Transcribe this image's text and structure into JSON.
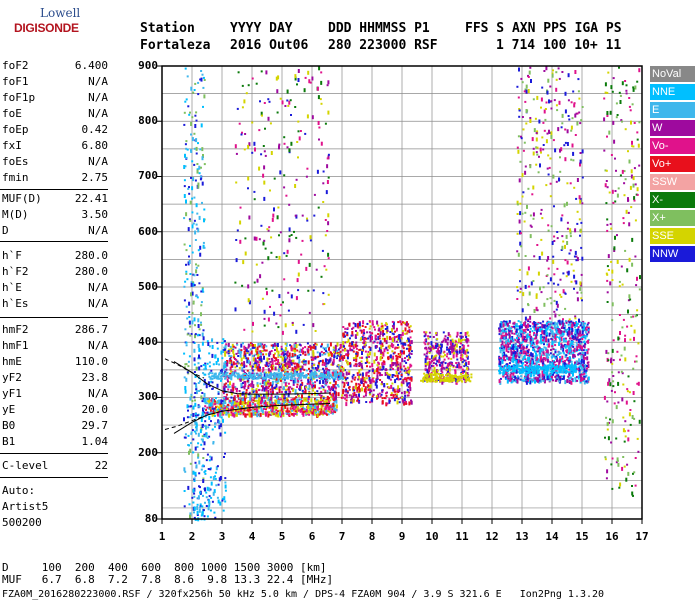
{
  "logo": {
    "top": "Lowell",
    "bottom": "DIGISONDE"
  },
  "header": {
    "labels": [
      "Station",
      "YYYY DAY",
      "DDD HHMMSS P1",
      "FFS S AXN PPS IGA PS"
    ],
    "values": [
      "Fortaleza",
      "2016 Out06",
      "280 223000 RSF",
      "1 714 100 10+ 11"
    ]
  },
  "params_group1": [
    {
      "name": "foF2",
      "value": "6.400"
    },
    {
      "name": "foF1",
      "value": "N/A"
    },
    {
      "name": "foF1p",
      "value": "N/A"
    },
    {
      "name": "foE",
      "value": "N/A"
    },
    {
      "name": "foEp",
      "value": "0.42"
    },
    {
      "name": "fxI",
      "value": "6.80"
    },
    {
      "name": "foEs",
      "value": "N/A"
    },
    {
      "name": "fmin",
      "value": "2.75"
    }
  ],
  "params_group2": [
    {
      "name": "MUF(D)",
      "value": "22.41"
    },
    {
      "name": "M(D)",
      "value": "3.50"
    },
    {
      "name": "D",
      "value": "N/A"
    }
  ],
  "params_group3": [
    {
      "name": "h`F",
      "value": "280.0"
    },
    {
      "name": "h`F2",
      "value": "280.0"
    },
    {
      "name": "h`E",
      "value": "N/A"
    },
    {
      "name": "h`Es",
      "value": "N/A"
    }
  ],
  "params_group4": [
    {
      "name": "hmF2",
      "value": "286.7"
    },
    {
      "name": "hmF1",
      "value": "N/A"
    },
    {
      "name": "hmE",
      "value": "110.0"
    },
    {
      "name": "yF2",
      "value": "23.8"
    },
    {
      "name": "yF1",
      "value": "N/A"
    },
    {
      "name": "yE",
      "value": "20.0"
    },
    {
      "name": "B0",
      "value": "29.7"
    },
    {
      "name": "B1",
      "value": "1.04"
    }
  ],
  "clevel": {
    "name": "C-level",
    "value": "22"
  },
  "auto": {
    "line1": "Auto:",
    "line2": "Artist5",
    "line3": "500200"
  },
  "legend": [
    {
      "label": "NoVal",
      "color": "#888888"
    },
    {
      "label": "NNE",
      "color": "#00bfff"
    },
    {
      "label": "E",
      "color": "#3fb7ec"
    },
    {
      "label": "W",
      "color": "#9e0a9e"
    },
    {
      "label": "Vo-",
      "color": "#e0128b"
    },
    {
      "label": "Vo+",
      "color": "#e8101c"
    },
    {
      "label": "SSW",
      "color": "#f3a3a3"
    },
    {
      "label": "X-",
      "color": "#0b7a0b"
    },
    {
      "label": "X+",
      "color": "#7fbf5f"
    },
    {
      "label": "SSE",
      "color": "#d4d400"
    },
    {
      "label": "NNW",
      "color": "#1a1ad9"
    }
  ],
  "bottom": {
    "line1": "D     100  200  400  600  800 1000 1500 3000 [km]",
    "line2": "MUF   6.7  6.8  7.2  7.8  8.6  9.8 13.3 22.4 [MHz]",
    "line3": "FZA0M_2016280223000.RSF / 320fx256h 50 kHz 5.0 km / DPS-4 FZA0M 904 / 3.9 S 321.6 E   Ion2Png 1.3.20"
  },
  "chart_data": {
    "type": "scatter",
    "xlim": [
      1,
      17
    ],
    "ylim": [
      80,
      900
    ],
    "xticks": [
      "1",
      "2",
      "3",
      "4",
      "5",
      "6",
      "7",
      "8",
      "9",
      "10",
      "11",
      "12",
      "13",
      "14",
      "15",
      "16",
      "17"
    ],
    "yticks": [
      "80",
      "200",
      "300",
      "400",
      "500",
      "600",
      "700",
      "800",
      "900"
    ],
    "grid": true,
    "ytick_values": [
      80,
      200,
      300,
      400,
      500,
      600,
      700,
      800,
      900
    ],
    "ygrid_values": [
      100,
      150,
      200,
      250,
      300,
      350,
      400,
      450,
      500,
      550,
      600,
      650,
      700,
      750,
      800,
      850,
      900
    ],
    "clusters": [
      {
        "x": [
          2.4,
          6.8
        ],
        "y": [
          270,
          300
        ],
        "colors": [
          "#e8101c",
          "#d4d400",
          "#e0128b",
          "#3fb7ec"
        ],
        "n": 700
      },
      {
        "x": [
          3.0,
          7.0
        ],
        "y": [
          300,
          400
        ],
        "colors": [
          "#9e0a9e",
          "#e0128b",
          "#1a1ad9",
          "#3fb7ec",
          "#d4d400",
          "#e8101c"
        ],
        "n": 1000
      },
      {
        "x": [
          7.0,
          9.3
        ],
        "y": [
          290,
          440
        ],
        "colors": [
          "#e8101c",
          "#9e0a9e",
          "#d4d400",
          "#e0128b",
          "#1a1ad9"
        ],
        "n": 700
      },
      {
        "x": [
          9.7,
          11.2
        ],
        "y": [
          330,
          420
        ],
        "colors": [
          "#9e0a9e",
          "#e0128b",
          "#d4d400",
          "#1a1ad9"
        ],
        "n": 350
      },
      {
        "x": [
          12.2,
          15.2
        ],
        "y": [
          330,
          440
        ],
        "colors": [
          "#1a1ad9",
          "#00bfff",
          "#9e0a9e",
          "#e0128b",
          "#3fb7ec"
        ],
        "n": 1300
      },
      {
        "x": [
          3.4,
          6.6
        ],
        "y": [
          420,
          900
        ],
        "colors": [
          "#9e0a9e",
          "#d4d400",
          "#1a1ad9",
          "#e0128b",
          "#0b7a0b"
        ],
        "n": 250
      },
      {
        "x": [
          12.8,
          15.0
        ],
        "y": [
          440,
          900
        ],
        "colors": [
          "#d4d400",
          "#9e0a9e",
          "#7fbf5f",
          "#e0128b",
          "#1a1ad9"
        ],
        "n": 350
      },
      {
        "x": [
          15.7,
          16.9
        ],
        "y": [
          120,
          900
        ],
        "colors": [
          "#d4d400",
          "#7fbf5f",
          "#0b7a0b",
          "#e0128b",
          "#9e0a9e"
        ],
        "n": 260
      },
      {
        "x": [
          1.7,
          2.4
        ],
        "y": [
          80,
          900
        ],
        "colors": [
          "#3fb7ec",
          "#00bfff",
          "#1a1ad9",
          "#7fbf5f"
        ],
        "n": 300
      },
      {
        "x": [
          2.0,
          3.1
        ],
        "y": [
          80,
          420
        ],
        "colors": [
          "#00bfff",
          "#3fb7ec",
          "#1a1ad9"
        ],
        "n": 250
      }
    ],
    "bands": [
      {
        "x": [
          2.5,
          7.0
        ],
        "y": [
          335,
          347
        ],
        "color": "#3fb7ec",
        "n": 300
      },
      {
        "x": [
          12.2,
          14.8
        ],
        "y": [
          345,
          360
        ],
        "color": "#00bfff",
        "n": 220
      },
      {
        "x": [
          9.6,
          11.3
        ],
        "y": [
          330,
          345
        ],
        "color": "#d4d400",
        "n": 150
      }
    ],
    "curves": [
      {
        "points": [
          [
            1.4,
            365
          ],
          [
            2.0,
            345
          ],
          [
            2.5,
            325
          ],
          [
            3.0,
            312
          ],
          [
            3.5,
            307
          ],
          [
            4.0,
            306
          ],
          [
            5.0,
            306
          ],
          [
            6.0,
            307
          ],
          [
            6.6,
            308
          ]
        ],
        "dash": false
      },
      {
        "points": [
          [
            1.4,
            235
          ],
          [
            2.0,
            255
          ],
          [
            2.5,
            268
          ],
          [
            3.0,
            275
          ],
          [
            4.0,
            282
          ],
          [
            5.0,
            286
          ],
          [
            6.0,
            288
          ],
          [
            6.6,
            289
          ]
        ],
        "dash": false
      },
      {
        "points": [
          [
            1.1,
            370
          ],
          [
            1.5,
            360
          ],
          [
            2.0,
            345
          ],
          [
            2.4,
            335
          ]
        ],
        "dash": true
      },
      {
        "points": [
          [
            1.1,
            242
          ],
          [
            1.5,
            248
          ],
          [
            2.0,
            258
          ],
          [
            2.4,
            266
          ]
        ],
        "dash": true
      }
    ]
  }
}
